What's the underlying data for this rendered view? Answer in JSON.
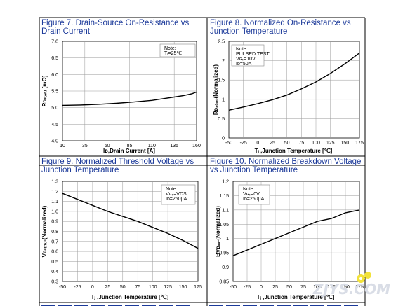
{
  "chart_data": [
    {
      "type": "line",
      "title_lines": [
        "Figure 7. Drain-Source On-Resistance vs",
        "Drain Current"
      ],
      "xlabel": "Iᴅ,Drain Current [A]",
      "ylabel": "Rᴅₛ₍ₒₙ₎ [mΩ]",
      "x_ticks": [
        "10",
        "35",
        "60",
        "85",
        "110",
        "135",
        "160"
      ],
      "y_ticks": [
        "7.0",
        "6.5",
        "6.0",
        "5.5",
        "5.0",
        "4.5",
        "4.0"
      ],
      "xlim": [
        10,
        160
      ],
      "ylim": [
        4.0,
        7.0
      ],
      "grid": true,
      "note_lines": [
        "Note:",
        "Tⱼ=25℃"
      ],
      "series": [
        {
          "x": [
            10,
            30,
            50,
            70,
            90,
            110,
            125,
            135,
            145,
            155,
            160
          ],
          "y": [
            5.07,
            5.08,
            5.1,
            5.13,
            5.17,
            5.22,
            5.28,
            5.32,
            5.36,
            5.42,
            5.47
          ]
        }
      ]
    },
    {
      "type": "line",
      "title_lines": [
        "Figure 8. Normalized On-Resistance vs",
        "Junction Temperature"
      ],
      "xlabel": "Tⱼ ,Junction Temperature [℃]",
      "ylabel": "Rᴅₛ₍ₒₙ₎(Normalized)",
      "x_ticks": [
        "-50",
        "-25",
        "0",
        "25",
        "50",
        "75",
        "100",
        "125",
        "150",
        "175"
      ],
      "y_ticks": [
        "2.5",
        "2",
        "1.5",
        "1",
        "0.5",
        "0"
      ],
      "xlim": [
        -50,
        175
      ],
      "ylim": [
        0,
        2.5
      ],
      "grid": true,
      "note_lines": [
        "Note:",
        "PULSED TEST",
        "Vɢₛ=10V",
        "Iᴅ=50A"
      ],
      "series": [
        {
          "x": [
            -50,
            -25,
            0,
            25,
            50,
            75,
            100,
            125,
            150,
            175
          ],
          "y": [
            0.72,
            0.8,
            0.89,
            0.99,
            1.11,
            1.27,
            1.45,
            1.67,
            1.92,
            2.2
          ]
        }
      ]
    },
    {
      "type": "line",
      "title_lines": [
        "Figure 9. Normalized Threshold Voltage vs",
        "Junction Temperature"
      ],
      "xlabel": "Tⱼ ,Junction Temperature [℃]",
      "ylabel": "Vɢₛ₍ₜₕ₎-(Normalized)",
      "x_ticks": [
        "-50",
        "-25",
        "0",
        "25",
        "50",
        "75",
        "100",
        "125",
        "150",
        "175"
      ],
      "y_ticks": [
        "1.3",
        "1.2",
        "1.1",
        "1.0",
        "0.9",
        "0.8",
        "0.7",
        "0.6",
        "0.5",
        "0.4",
        "0.3"
      ],
      "xlim": [
        -50,
        175
      ],
      "ylim": [
        0.3,
        1.3
      ],
      "grid": true,
      "note_lines": [
        "Note:",
        "Vɢₛ=VDS",
        "Iᴅ=250µA"
      ],
      "series": [
        {
          "x": [
            -50,
            -25,
            0,
            25,
            50,
            75,
            100,
            125,
            150,
            175
          ],
          "y": [
            1.18,
            1.12,
            1.06,
            1.0,
            0.95,
            0.9,
            0.84,
            0.78,
            0.71,
            0.63
          ]
        }
      ]
    },
    {
      "type": "line",
      "title_lines": [
        "Figure 10. Normalized Breakdown Voltage",
        "vs Junction Temperature"
      ],
      "xlabel": "Tⱼ ,Junction Temperature [℃]",
      "ylabel": "BVᴅₛₛ-(Normalized)",
      "x_ticks": [
        "-50",
        "-25",
        "0",
        "25",
        "50",
        "75",
        "100",
        "125",
        "150",
        "175"
      ],
      "y_ticks": [
        "1.2",
        "1.15",
        "1.1",
        "1.05",
        "1",
        "0.95",
        "0.9",
        "0.85"
      ],
      "xlim": [
        -50,
        175
      ],
      "ylim": [
        0.85,
        1.2
      ],
      "grid": true,
      "note_lines": [
        "Note:",
        "Vɢₛ=0V",
        "Iᴅ=250µA"
      ],
      "series": [
        {
          "x": [
            -50,
            -25,
            0,
            25,
            50,
            75,
            100,
            125,
            150,
            175
          ],
          "y": [
            0.94,
            0.96,
            0.98,
            1.0,
            1.02,
            1.04,
            1.06,
            1.07,
            1.09,
            1.1
          ]
        }
      ]
    }
  ],
  "watermark": "ZJYS.COM"
}
